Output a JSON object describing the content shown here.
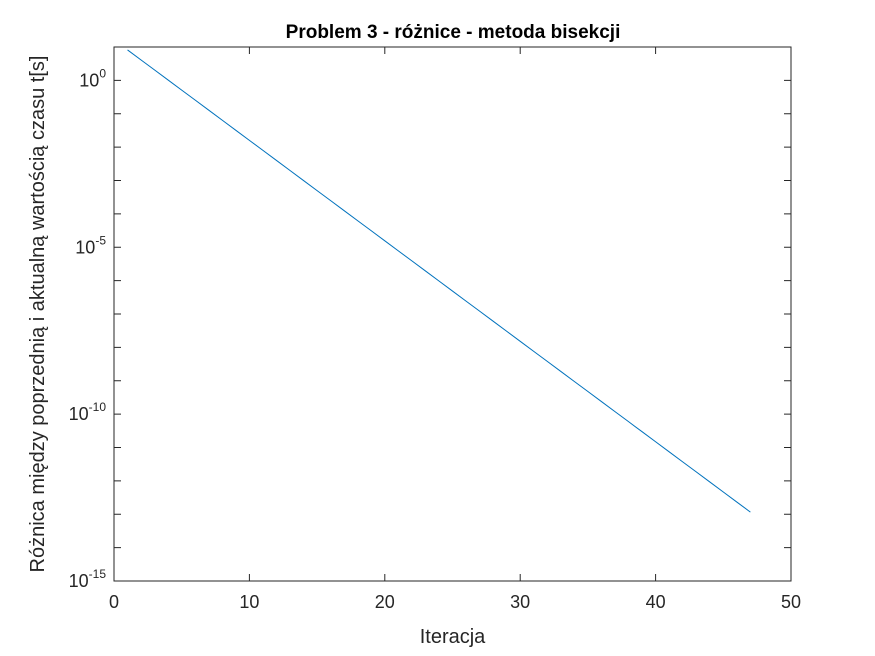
{
  "chart_data": {
    "type": "line",
    "title": "Problem 3 - różnice - metoda bisekcji",
    "xlabel": "Iteracja",
    "ylabel": "Różnica między poprzednią i aktualną wartością czasu t[s]",
    "xlim": [
      0,
      50
    ],
    "ylim": [
      1e-15,
      10
    ],
    "yscale": "log",
    "x_ticks": [
      0,
      10,
      20,
      30,
      40,
      50
    ],
    "x_tick_labels": [
      "0",
      "10",
      "20",
      "30",
      "40",
      "50"
    ],
    "y_ticks": [
      1e-15,
      1e-10,
      1e-05,
      1
    ],
    "y_tick_labels": [
      {
        "base": "10",
        "exp": "-15"
      },
      {
        "base": "10",
        "exp": "-10"
      },
      {
        "base": "10",
        "exp": "-5"
      },
      {
        "base": "10",
        "exp": "0"
      }
    ],
    "grid": false,
    "series": [
      {
        "color": "#0072BD",
        "x_start": 1,
        "x_end": 47,
        "first_value": 8.17,
        "ratio": 0.5
      }
    ]
  }
}
